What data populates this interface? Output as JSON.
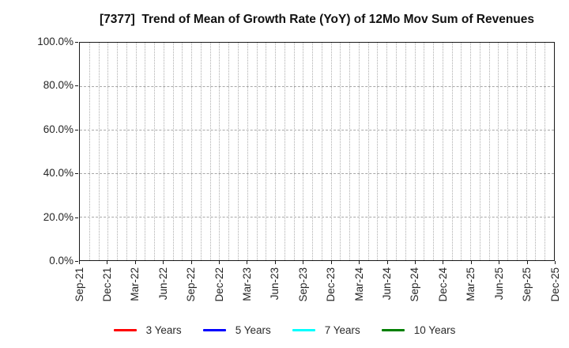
{
  "chart_data": {
    "type": "line",
    "title": "[7377]  Trend of Mean of Growth Rate (YoY) of 12Mo Mov Sum of Revenues",
    "x_tick_labels": [
      "Sep-21",
      "Dec-21",
      "Mar-22",
      "Jun-22",
      "Sep-22",
      "Dec-22",
      "Mar-23",
      "Jun-23",
      "Sep-23",
      "Dec-23",
      "Mar-24",
      "Jun-24",
      "Sep-24",
      "Dec-24",
      "Mar-25",
      "Jun-25",
      "Sep-25",
      "Dec-25"
    ],
    "months_between_labels": 3,
    "y_tick_labels": [
      "0.0%",
      "20.0%",
      "40.0%",
      "60.0%",
      "80.0%",
      "100.0%"
    ],
    "y_tick_values": [
      0,
      20,
      40,
      60,
      80,
      100
    ],
    "ylim": [
      0,
      100
    ],
    "grid": "on",
    "legend_position": "bottom",
    "series": [
      {
        "name": "3 Years",
        "color": "#ff0000",
        "values": []
      },
      {
        "name": "5 Years",
        "color": "#0000ff",
        "values": []
      },
      {
        "name": "7 Years",
        "color": "#00ffff",
        "values": []
      },
      {
        "name": "10 Years",
        "color": "#008000",
        "values": []
      }
    ]
  },
  "colors": {
    "background": "#ffffff",
    "grid_vertical": "#aeaeae",
    "grid_horizontal": "#a8a8a8",
    "spine": "#1a1a1a",
    "tick_text": "#262626",
    "title_text": "#111111"
  }
}
